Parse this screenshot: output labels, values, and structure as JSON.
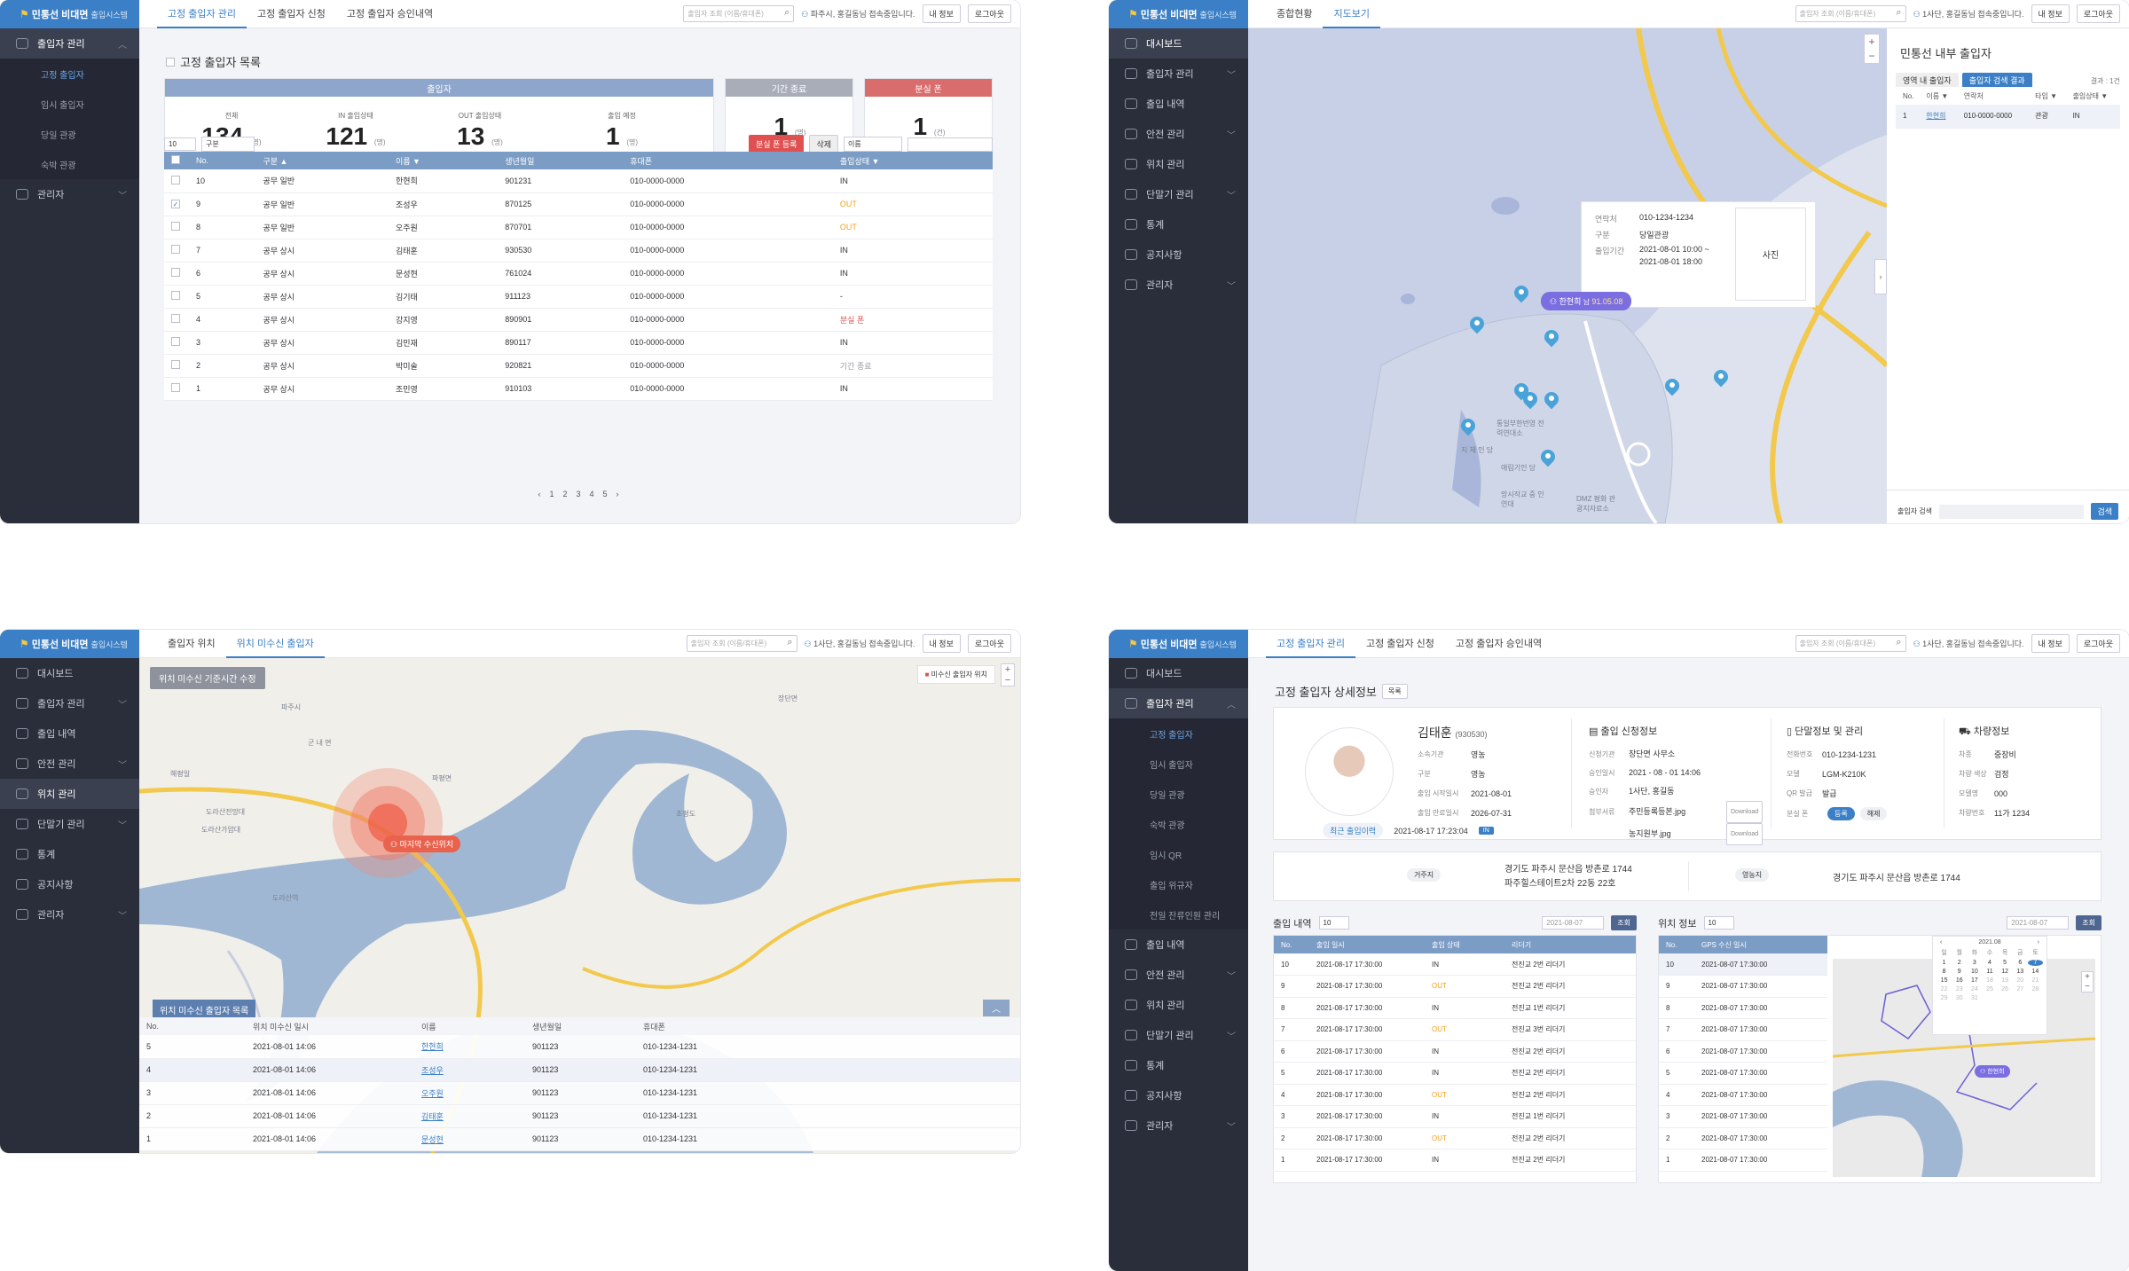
{
  "brand": {
    "name": "민통선 비대면",
    "suffix": "출입시스템"
  },
  "s1": {
    "menu": {
      "m1": "출입자 관리",
      "subs": [
        "고정 출입자",
        "임시 출입자",
        "당일 관광",
        "숙박 관광"
      ],
      "m2": "관리자"
    },
    "tabs": [
      "고정 출입자 관리",
      "고정 출입자 신청",
      "고정 출입자 승인내역"
    ],
    "search_ph": "출입자 조회 (이름/휴대폰)",
    "user": "파주시, 홍길동님 접속중입니다.",
    "myinfo": "내 정보",
    "logout": "로그아웃",
    "title": "고정 출입자 목록",
    "kpi": {
      "head_main": "출입자",
      "head_period": "기간 종료",
      "head_lost": "분실 폰",
      "items": [
        {
          "label": "전체",
          "value": "134",
          "unit": "(명)"
        },
        {
          "label": "IN 출입상태",
          "value": "121",
          "unit": "(명)"
        },
        {
          "label": "OUT 출입상태",
          "value": "13",
          "unit": "(명)"
        },
        {
          "label": "출입 예정",
          "value": "1",
          "unit": "(명)"
        }
      ],
      "period": {
        "value": "1",
        "unit": "(명)"
      },
      "lost": {
        "value": "1",
        "unit": "(건)"
      }
    },
    "filters": {
      "count": "10",
      "type": "구분",
      "lost_btn": "분실 폰 등록",
      "del_btn": "삭제",
      "field": "이름"
    },
    "cols": [
      "No.",
      "구분 ▲",
      "이름 ▼",
      "생년월일",
      "휴대폰",
      "출입상태 ▼"
    ],
    "rows": [
      [
        "10",
        "공무 일반",
        "한현희",
        "901231",
        "010-0000-0000",
        "IN"
      ],
      [
        "9",
        "공무 일반",
        "조성우",
        "870125",
        "010-0000-0000",
        "OUT"
      ],
      [
        "8",
        "공무 일반",
        "오주원",
        "870701",
        "010-0000-0000",
        "OUT"
      ],
      [
        "7",
        "공무 상시",
        "김태훈",
        "930530",
        "010-0000-0000",
        "IN"
      ],
      [
        "6",
        "공무 상시",
        "문성현",
        "761024",
        "010-0000-0000",
        "IN"
      ],
      [
        "5",
        "공무 상시",
        "김기태",
        "911123",
        "010-0000-0000",
        "-"
      ],
      [
        "4",
        "공무 상시",
        "강지영",
        "890901",
        "010-0000-0000",
        "분실 폰"
      ],
      [
        "3",
        "공무 상시",
        "김민재",
        "890117",
        "010-0000-0000",
        "IN"
      ],
      [
        "2",
        "공무 상시",
        "박미술",
        "920821",
        "010-0000-0000",
        "기간 종료"
      ],
      [
        "1",
        "공무 상시",
        "조민영",
        "910103",
        "010-0000-0000",
        "IN"
      ]
    ],
    "pages": [
      "‹",
      "1",
      "2",
      "3",
      "4",
      "5",
      "›"
    ]
  },
  "s2": {
    "menu": [
      "대시보드",
      "출입자 관리",
      "출입 내역",
      "안전 관리",
      "위치 관리",
      "단말기 관리",
      "통계",
      "공지사항",
      "관리자"
    ],
    "tabs": [
      "종합현황",
      "지도보기"
    ],
    "user": "1사단, 홍길동님 접속중입니다.",
    "popup": {
      "phone_l": "연락처",
      "phone": "010-1234-1234",
      "type_l": "구분",
      "type": "당일관광",
      "period_l": "출입기간",
      "p1": "2021-08-01  10:00 ~",
      "p2": "2021-08-01  18:00",
      "photo": "사진",
      "name": "한현희",
      "gender": "남",
      "birth": "91.05.08"
    },
    "map_labels": [
      "통일부한번영 전력연대소",
      "지 체 인 당",
      "애림기인 당",
      "망시작교 중 인연대",
      "DMZ 평화 관광지자료소"
    ],
    "side": {
      "title": "민통선 내부 출입자",
      "tab1": "영역 내 출입자",
      "tab2": "출입자 검색 결과",
      "count": "결과 : 1건",
      "cols": [
        "No.",
        "이름 ▼",
        "연락처",
        "타입 ▼",
        "출입상태 ▼"
      ],
      "row": [
        "1",
        "한현희",
        "010-0000-0000",
        "관광",
        "IN"
      ],
      "search_label": "출입자 검색",
      "search_btn": "검색"
    }
  },
  "s3": {
    "menu": [
      "대시보드",
      "출입자 관리",
      "출입 내역",
      "안전 관리",
      "위치 관리",
      "단말기 관리",
      "통계",
      "공지사항",
      "관리자"
    ],
    "tabs": [
      "출입자 위치",
      "위치 미수신 출입자"
    ],
    "overlay_btn": "위치 미수신 기준시간 수정",
    "legend": "미수신 출입자 위치",
    "marker": "마지막 수신위치",
    "map_labels": [
      "파주시",
      "군 내 면",
      "해평일",
      "도라산전망대",
      "도라산가압대",
      "초평도",
      "도라산역",
      "장단면",
      "파평면"
    ],
    "list_title": "위치 미수신 출입자 목록",
    "cols": [
      "No.",
      "위치 미수신 일시",
      "이름",
      "생년월일",
      "휴대폰"
    ],
    "rows": [
      [
        "5",
        "2021-08-01  14:06",
        "한현희",
        "901123",
        "010-1234-1231"
      ],
      [
        "4",
        "2021-08-01  14:06",
        "조성우",
        "901123",
        "010-1234-1231"
      ],
      [
        "3",
        "2021-08-01  14:06",
        "오주원",
        "901123",
        "010-1234-1231"
      ],
      [
        "2",
        "2021-08-01  14:06",
        "김태훈",
        "901123",
        "010-1234-1231"
      ],
      [
        "1",
        "2021-08-01  14:06",
        "문성현",
        "901123",
        "010-1234-1231"
      ]
    ]
  },
  "s4": {
    "menu": [
      "대시보드",
      "출입자 관리"
    ],
    "subs": [
      "고정 출입자",
      "임시 출입자",
      "당일 관광",
      "숙박 관광",
      "임시 QR",
      "출입 위규자",
      "전일 잔류인원 관리"
    ],
    "menu2": [
      "출입 내역",
      "안전 관리",
      "위치 관리",
      "단말기 관리",
      "통계",
      "공지사항",
      "관리자"
    ],
    "title": "고정 출입자 상세정보",
    "list_btn": "목록",
    "profile": {
      "name": "김태훈",
      "birth": "(930530)",
      "f": [
        [
          "소속기관",
          "영농"
        ],
        [
          "구분",
          "영농"
        ],
        [
          "출입 시작일시",
          "2021-08-01"
        ],
        [
          "출입 만료일시",
          "2026-07-31"
        ]
      ],
      "recent_l": "최근 출입이력",
      "recent": "2021-08-17  17:23:04",
      "badge": "IN"
    },
    "apply": {
      "title": "출입 신청정보",
      "f": [
        [
          "신청기관",
          "장단면 사무소"
        ],
        [
          "승인일시",
          "2021 - 08 - 01  14:06"
        ],
        [
          "승인자",
          "1사단, 홍길동"
        ],
        [
          "첨부서류",
          "주민등록등본.jpg"
        ],
        [
          "",
          "농지원부.jpg"
        ]
      ],
      "dl": "Download"
    },
    "device": {
      "title": "단말정보 및 관리",
      "f": [
        [
          "전화번호",
          "010-1234-1231"
        ],
        [
          "모델",
          "LGM-K210K"
        ],
        [
          "QR 발급",
          "발급"
        ]
      ],
      "lost_l": "분실 폰",
      "on": "등록",
      "off": "해제"
    },
    "car": {
      "title": "차량정보",
      "f": [
        [
          "차종",
          "중장비"
        ],
        [
          "차량 색상",
          "검정"
        ],
        [
          "모델명",
          "000"
        ],
        [
          "차량번호",
          "11가 1234"
        ]
      ]
    },
    "addr": {
      "home_l": "거주지",
      "home1": "경기도 파주시 문산읍 방촌로 1744",
      "home2": "파주힐스테이트2차 22동 22호",
      "farm_l": "영농지",
      "farm": "경기도 파주시 문산읍 방촌로 1744"
    },
    "hist": {
      "title": "출입 내역",
      "count": "10",
      "date": "2021-08-07",
      "btn": "조회",
      "cols": [
        "No.",
        "출입 일시",
        "출입 상태",
        "리더기"
      ],
      "rows": [
        [
          "10",
          "2021-08-17  17:30:00",
          "IN",
          "전진교 2번 리더기"
        ],
        [
          "9",
          "2021-08-17  17:30:00",
          "OUT",
          "전진교 2번 리더기"
        ],
        [
          "8",
          "2021-08-17  17:30:00",
          "IN",
          "전진교 1번 리더기"
        ],
        [
          "7",
          "2021-08-17  17:30:00",
          "OUT",
          "전진교 3번 리더기"
        ],
        [
          "6",
          "2021-08-17  17:30:00",
          "IN",
          "전진교 2번 리더기"
        ],
        [
          "5",
          "2021-08-17  17:30:00",
          "IN",
          "전진교 2번 리더기"
        ],
        [
          "4",
          "2021-08-17  17:30:00",
          "OUT",
          "전진교 2번 리더기"
        ],
        [
          "3",
          "2021-08-17  17:30:00",
          "IN",
          "전진교 1번 리더기"
        ],
        [
          "2",
          "2021-08-17  17:30:00",
          "OUT",
          "전진교 2번 리더기"
        ],
        [
          "1",
          "2021-08-17  17:30:00",
          "IN",
          "전진교 2번 리더기"
        ]
      ]
    },
    "gps": {
      "title": "위치 정보",
      "count": "10",
      "date": "2021-08-07",
      "btn": "조회",
      "cols": [
        "No.",
        "GPS 수신 일시"
      ],
      "rows": [
        [
          "10",
          "2021-08-07  17:30:00"
        ],
        [
          "9",
          "2021-08-07  17:30:00"
        ],
        [
          "8",
          "2021-08-07  17:30:00"
        ],
        [
          "7",
          "2021-08-07  17:30:00"
        ],
        [
          "6",
          "2021-08-07  17:30:00"
        ],
        [
          "5",
          "2021-08-07  17:30:00"
        ],
        [
          "4",
          "2021-08-07  17:30:00"
        ],
        [
          "3",
          "2021-08-07  17:30:00"
        ],
        [
          "2",
          "2021-08-07  17:30:00"
        ],
        [
          "1",
          "2021-08-07  17:30:00"
        ]
      ],
      "cal_month": "2021.08",
      "marker": "한현희"
    }
  },
  "colors": {
    "accent": "#3b7fc6",
    "sidebar": "#2a2e3a",
    "header_main": "#8fa6cc",
    "period": "#a8adb8",
    "lost": "#d96d6d",
    "out": "#f0a020"
  }
}
